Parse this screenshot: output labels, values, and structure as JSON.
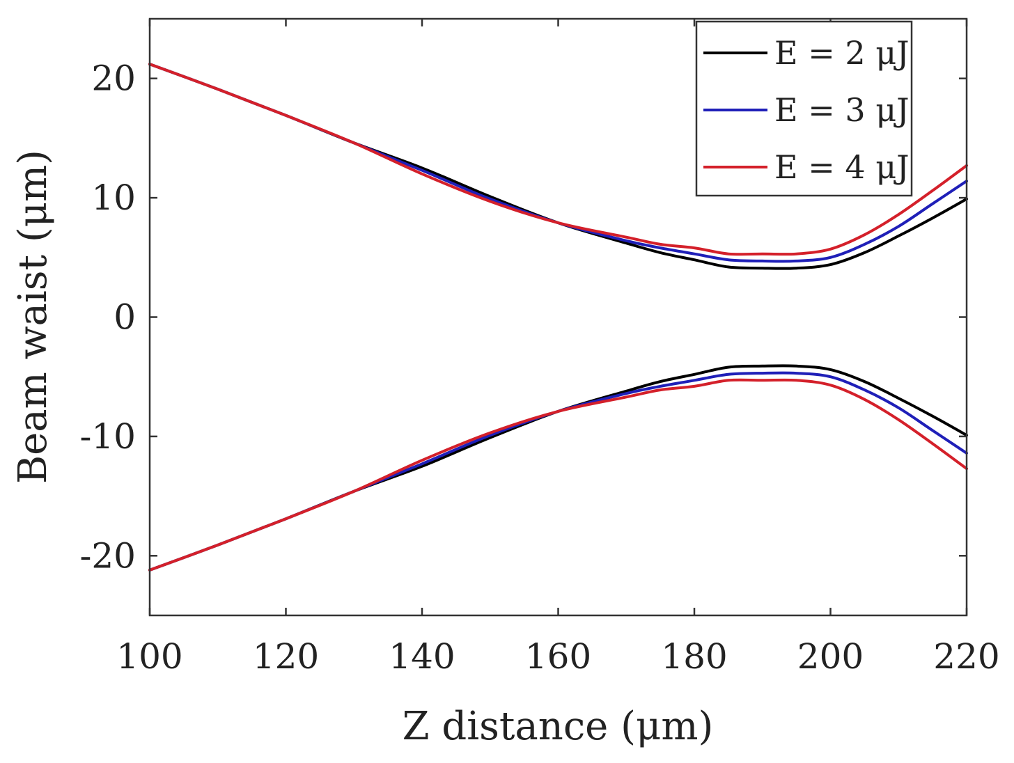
{
  "chart_data": {
    "type": "line",
    "title": "",
    "xlabel": "Z distance (μm)",
    "ylabel": "Beam waist (μm)",
    "xlim": [
      100,
      220
    ],
    "ylim": [
      -25,
      25
    ],
    "xticks": [
      100,
      120,
      140,
      160,
      180,
      200,
      220
    ],
    "yticks": [
      -20,
      -10,
      0,
      10,
      20
    ],
    "xtick_labels": [
      "100",
      "120",
      "140",
      "160",
      "180",
      "200",
      "220"
    ],
    "ytick_labels": [
      "-20",
      "-10",
      "0",
      "10",
      "20"
    ],
    "grid": false,
    "legend_position": "top-right",
    "series": [
      {
        "name": "E = 2 μJ",
        "color": "#000000",
        "x": [
          100,
          110,
          120,
          130,
          140,
          150,
          160,
          170,
          175,
          180,
          185,
          190,
          195,
          200,
          205,
          210,
          215,
          220
        ],
        "upper": [
          21.2,
          19.1,
          16.9,
          14.6,
          12.5,
          10.1,
          7.9,
          6.2,
          5.4,
          4.8,
          4.2,
          4.1,
          4.1,
          4.4,
          5.4,
          6.8,
          8.3,
          9.9
        ],
        "lower": [
          -21.2,
          -19.1,
          -16.9,
          -14.6,
          -12.5,
          -10.1,
          -7.9,
          -6.2,
          -5.4,
          -4.8,
          -4.2,
          -4.1,
          -4.1,
          -4.4,
          -5.4,
          -6.8,
          -8.3,
          -9.9
        ]
      },
      {
        "name": "E = 3 μJ",
        "color": "#1f1fb8",
        "x": [
          100,
          110,
          120,
          130,
          140,
          150,
          160,
          170,
          175,
          180,
          185,
          190,
          195,
          200,
          205,
          210,
          215,
          220
        ],
        "upper": [
          21.2,
          19.1,
          16.9,
          14.6,
          12.3,
          9.9,
          7.9,
          6.4,
          5.8,
          5.3,
          4.8,
          4.7,
          4.7,
          5.0,
          6.1,
          7.6,
          9.5,
          11.4
        ],
        "lower": [
          -21.2,
          -19.1,
          -16.9,
          -14.6,
          -12.3,
          -9.9,
          -7.9,
          -6.4,
          -5.8,
          -5.3,
          -4.8,
          -4.7,
          -4.7,
          -5.0,
          -6.1,
          -7.6,
          -9.5,
          -11.4
        ]
      },
      {
        "name": "E = 4 μJ",
        "color": "#d4202a",
        "x": [
          100,
          110,
          120,
          130,
          140,
          150,
          160,
          170,
          175,
          180,
          185,
          190,
          195,
          200,
          205,
          210,
          215,
          220
        ],
        "upper": [
          21.2,
          19.1,
          16.9,
          14.6,
          12.0,
          9.7,
          7.9,
          6.7,
          6.1,
          5.8,
          5.3,
          5.3,
          5.3,
          5.7,
          6.9,
          8.6,
          10.6,
          12.7
        ],
        "lower": [
          -21.2,
          -19.1,
          -16.9,
          -14.6,
          -12.0,
          -9.7,
          -7.9,
          -6.7,
          -6.1,
          -5.8,
          -5.3,
          -5.3,
          -5.3,
          -5.7,
          -6.9,
          -8.6,
          -10.6,
          -12.7
        ]
      }
    ]
  }
}
